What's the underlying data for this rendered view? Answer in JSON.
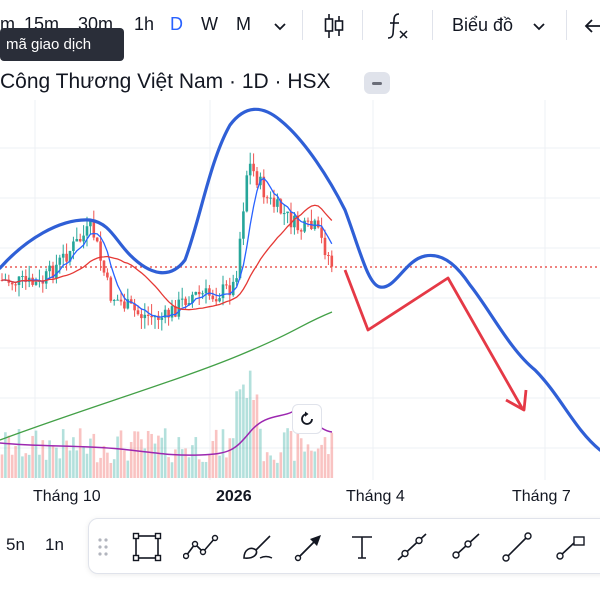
{
  "toolbar": {
    "timeframes": [
      {
        "label": "m",
        "active": false
      },
      {
        "label": "15m",
        "active": false
      },
      {
        "label": "30m",
        "active": false
      },
      {
        "label": "1h",
        "active": false
      },
      {
        "label": "D",
        "active": true
      },
      {
        "label": "W",
        "active": false
      },
      {
        "label": "M",
        "active": false
      }
    ],
    "chart_type_label": "Biểu đồ",
    "accent_color": "#2962ff"
  },
  "tooltip": {
    "text": "mã giao dịch"
  },
  "legend": {
    "title": "Công Thương Việt Nam · 1D · HSX"
  },
  "x_axis": {
    "labels": [
      "Tháng 10",
      "2026",
      "Tháng 4",
      "Tháng 7"
    ]
  },
  "range_buttons": [
    "5n",
    "1n"
  ],
  "drawing_tools": [
    "drag-handle-icon",
    "rectangle-icon",
    "path-icon",
    "brush-icon",
    "arrow-icon",
    "text-icon",
    "trend-line-icon",
    "ray-icon",
    "line-icon",
    "extended-line-icon"
  ],
  "colors": {
    "up": "#26a69a",
    "down": "#ef5350",
    "sma_fast": "#2962ff",
    "sma_mid": "#e53935",
    "sma_slow": "#43a047",
    "oscillator": "#9c27b0",
    "annotation_curve": "#2f5fd6",
    "annotation_arrow": "#e53946",
    "price_line": "#e53935"
  },
  "chart_data": {
    "type": "candlestick",
    "x_axis_labels": [
      "Tháng 10",
      "2026",
      "Tháng 4",
      "Tháng 7"
    ],
    "last_close_line": true,
    "series": [
      {
        "kind": "candles",
        "trend": [
          "sideways",
          "rally",
          "peak",
          "pullback"
        ]
      },
      {
        "kind": "moving-average-fast"
      },
      {
        "kind": "moving-average-mid"
      },
      {
        "kind": "moving-average-slow"
      },
      {
        "kind": "volume"
      },
      {
        "kind": "oscillator"
      }
    ],
    "annotations": [
      "head-and-shoulders-outline",
      "projected-down-arrow"
    ]
  }
}
